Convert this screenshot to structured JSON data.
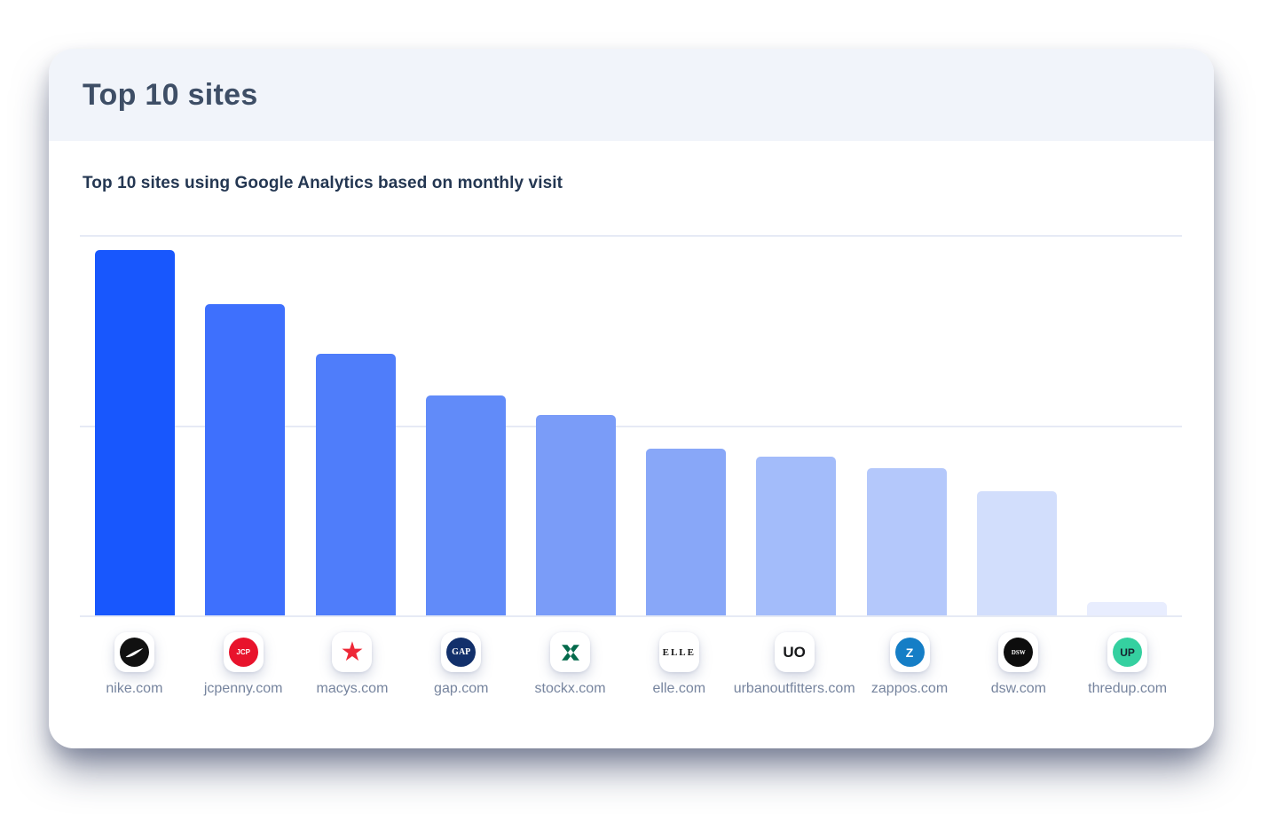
{
  "card": {
    "title": "Top 10 sites",
    "subtitle": "Top 10 sites using Google Analytics based on monthly visit"
  },
  "colors": {
    "card_bg": "#ffffff",
    "header_band": "#f1f4fa",
    "title_text": "#3e4e66",
    "subtitle_text": "#243752",
    "label_text": "#76849e",
    "gridline": "#e6eaf5",
    "card_shadow": "rgba(35,45,82,0.55)"
  },
  "chart_data": {
    "type": "bar",
    "title": "Top 10 sites using Google Analytics based on monthly visit",
    "categories": [
      "nike.com",
      "jcpenny.com",
      "macys.com",
      "gap.com",
      "stockx.com",
      "elle.com",
      "urbanoutfitters.com",
      "zappos.com",
      "dsw.com",
      "thredup.com"
    ],
    "values": [
      96,
      82,
      69,
      58,
      53,
      44,
      42,
      39,
      33,
      4
    ],
    "value_note": "relative heights estimated from gridlines; no numeric axis labels are shown",
    "xlabel": "",
    "ylabel": "",
    "ylim": [
      0,
      100
    ],
    "gridlines_at": [
      0,
      50,
      100
    ],
    "legend": "none",
    "bar_colors": [
      "#1857fd",
      "#3e70fd",
      "#4f7dfa",
      "#618bf9",
      "#7a9cf8",
      "#88a7f8",
      "#a3bcfa",
      "#b4c8fb",
      "#d2defc",
      "#e8edfe"
    ]
  },
  "sites": [
    {
      "label": "nike.com",
      "icon": "nike-swoosh-icon",
      "shape": "svg-swoosh",
      "icon_bg": "#111111",
      "icon_fg": "#ffffff"
    },
    {
      "label": "jcpenny.com",
      "icon": "jcpenney-icon",
      "shape": "circle",
      "icon_bg": "#e8132c",
      "icon_fg": "#ffffff",
      "icon_text": "JCP",
      "text_size": "8px"
    },
    {
      "label": "macys.com",
      "icon": "macys-star-icon",
      "shape": "star",
      "icon_fg": "#ee2837",
      "icon_text": "★"
    },
    {
      "label": "gap.com",
      "icon": "gap-icon",
      "shape": "circle",
      "icon_bg": "#12306b",
      "icon_fg": "#ffffff",
      "icon_text": "GAP",
      "text_size": "10px",
      "serif": true
    },
    {
      "label": "stockx.com",
      "icon": "stockx-x-icon",
      "shape": "svg-x",
      "icon_fg": "#046a4b"
    },
    {
      "label": "elle.com",
      "icon": "elle-icon",
      "shape": "text",
      "icon_fg": "#141414",
      "icon_text": "ELLE",
      "text_size": "11px",
      "serif": true,
      "spacing": "2px"
    },
    {
      "label": "urbanoutfitters.com",
      "icon": "urban-outfitters-icon",
      "shape": "text",
      "icon_fg": "#17181a",
      "icon_text": "UO",
      "text_size": "17px"
    },
    {
      "label": "zappos.com",
      "icon": "zappos-icon",
      "shape": "circle",
      "icon_bg": "#157ec6",
      "icon_fg": "#ffffff",
      "icon_text": "Z",
      "text_size": "14px"
    },
    {
      "label": "dsw.com",
      "icon": "dsw-icon",
      "shape": "circle",
      "icon_bg": "#0d0d0d",
      "icon_fg": "#ffffff",
      "icon_text": "DSW",
      "text_size": "7px",
      "serif": true
    },
    {
      "label": "thredup.com",
      "icon": "thredup-icon",
      "shape": "circle",
      "icon_bg": "#35d0a0",
      "icon_fg": "#16222e",
      "icon_text": "UP",
      "text_size": "12px"
    }
  ]
}
